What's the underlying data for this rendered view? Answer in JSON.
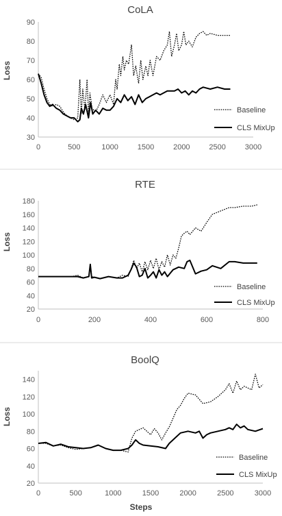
{
  "chart_data": [
    {
      "type": "line",
      "title": "CoLA",
      "xlabel": "",
      "ylabel": "Loss",
      "xlim": [
        0,
        3000
      ],
      "ylim": [
        30,
        90
      ],
      "xticks": [
        0,
        500,
        1000,
        1500,
        2000,
        2500,
        3000
      ],
      "yticks": [
        30,
        40,
        50,
        60,
        70,
        80,
        90
      ],
      "grid": false,
      "legend_position": "bottom-right",
      "series": [
        {
          "name": "Baseline",
          "style": "dotted",
          "x": [
            0,
            40,
            80,
            120,
            160,
            200,
            250,
            300,
            350,
            400,
            450,
            500,
            550,
            580,
            600,
            620,
            650,
            680,
            700,
            720,
            750,
            800,
            850,
            900,
            950,
            1000,
            1050,
            1080,
            1100,
            1130,
            1150,
            1180,
            1200,
            1230,
            1260,
            1300,
            1330,
            1360,
            1400,
            1430,
            1460,
            1500,
            1530,
            1560,
            1600,
            1650,
            1700,
            1750,
            1800,
            1830,
            1860,
            1900,
            1930,
            1960,
            2000,
            2030,
            2060,
            2100,
            2150,
            2200,
            2250,
            2300,
            2350,
            2400,
            2500,
            2600,
            2680
          ],
          "values": [
            63,
            61,
            55,
            50,
            47,
            46,
            47,
            46,
            43,
            41,
            40,
            39,
            40,
            60,
            42,
            55,
            44,
            60,
            42,
            53,
            45,
            43,
            47,
            52,
            48,
            52,
            47,
            60,
            55,
            68,
            62,
            72,
            65,
            70,
            68,
            78,
            62,
            67,
            58,
            70,
            60,
            67,
            62,
            70,
            62,
            72,
            70,
            75,
            78,
            85,
            72,
            78,
            84,
            75,
            78,
            85,
            78,
            80,
            77,
            82,
            84,
            85,
            83,
            84,
            83,
            83,
            83
          ]
        },
        {
          "name": "CLS MixUp",
          "style": "solid",
          "x": [
            0,
            40,
            80,
            120,
            160,
            200,
            250,
            300,
            350,
            400,
            450,
            500,
            550,
            580,
            600,
            630,
            660,
            700,
            730,
            760,
            800,
            850,
            900,
            950,
            1000,
            1050,
            1100,
            1150,
            1200,
            1250,
            1300,
            1350,
            1400,
            1450,
            1500,
            1550,
            1600,
            1650,
            1700,
            1800,
            1900,
            1950,
            2000,
            2050,
            2100,
            2150,
            2200,
            2250,
            2300,
            2400,
            2500,
            2600,
            2680
          ],
          "values": [
            63,
            58,
            52,
            48,
            46,
            47,
            45,
            44,
            42,
            41,
            40,
            40,
            38,
            39,
            45,
            42,
            47,
            40,
            48,
            42,
            44,
            42,
            45,
            44,
            44,
            46,
            50,
            48,
            52,
            49,
            51,
            47,
            52,
            48,
            50,
            51,
            52,
            53,
            52,
            54,
            54,
            55,
            53,
            54,
            52,
            54,
            53,
            55,
            56,
            55,
            56,
            55,
            55
          ]
        }
      ]
    },
    {
      "type": "line",
      "title": "RTE",
      "xlabel": "",
      "ylabel": "Loss",
      "xlim": [
        0,
        800
      ],
      "ylim": [
        20,
        180
      ],
      "xticks": [
        0,
        200,
        400,
        600,
        800
      ],
      "yticks": [
        20,
        40,
        60,
        80,
        100,
        120,
        140,
        160,
        180
      ],
      "grid": false,
      "legend_position": "bottom-right",
      "series": [
        {
          "name": "Baseline",
          "style": "dotted",
          "x": [
            0,
            40,
            80,
            120,
            140,
            160,
            180,
            185,
            190,
            200,
            220,
            250,
            280,
            300,
            320,
            330,
            340,
            350,
            360,
            370,
            380,
            390,
            400,
            410,
            420,
            430,
            440,
            450,
            460,
            470,
            480,
            490,
            500,
            510,
            520,
            530,
            540,
            560,
            580,
            600,
            620,
            650,
            680,
            700,
            730,
            760,
            780
          ],
          "values": [
            68,
            68,
            68,
            68,
            70,
            66,
            68,
            86,
            68,
            67,
            65,
            68,
            66,
            70,
            68,
            78,
            92,
            80,
            88,
            75,
            90,
            78,
            92,
            80,
            95,
            78,
            90,
            82,
            100,
            85,
            100,
            95,
            110,
            128,
            132,
            135,
            130,
            140,
            135,
            148,
            160,
            165,
            170,
            170,
            172,
            172,
            174
          ]
        },
        {
          "name": "CLS MixUp",
          "style": "solid",
          "x": [
            0,
            40,
            80,
            120,
            140,
            160,
            180,
            185,
            190,
            200,
            220,
            250,
            280,
            300,
            320,
            330,
            340,
            350,
            360,
            370,
            380,
            390,
            400,
            410,
            420,
            430,
            440,
            450,
            460,
            480,
            500,
            520,
            530,
            540,
            550,
            560,
            580,
            600,
            620,
            650,
            680,
            700,
            730,
            760,
            780
          ],
          "values": [
            68,
            68,
            68,
            68,
            68,
            66,
            68,
            86,
            66,
            67,
            65,
            68,
            66,
            66,
            70,
            78,
            88,
            82,
            68,
            70,
            80,
            66,
            70,
            75,
            66,
            78,
            70,
            75,
            68,
            78,
            82,
            80,
            90,
            92,
            82,
            72,
            76,
            78,
            84,
            80,
            90,
            90,
            88,
            88,
            88
          ]
        }
      ]
    },
    {
      "type": "line",
      "title": "BoolQ",
      "xlabel": "Steps",
      "ylabel": "Loss",
      "xlim": [
        0,
        3000
      ],
      "ylim": [
        20,
        150
      ],
      "xticks": [
        0,
        500,
        1000,
        1500,
        2000,
        2500,
        3000
      ],
      "yticks": [
        20,
        40,
        60,
        80,
        100,
        120,
        140
      ],
      "grid": false,
      "legend_position": "bottom-right",
      "series": [
        {
          "name": "Baseline",
          "style": "dotted",
          "x": [
            0,
            100,
            200,
            300,
            400,
            500,
            600,
            700,
            800,
            900,
            1000,
            1100,
            1200,
            1250,
            1300,
            1400,
            1450,
            1500,
            1550,
            1600,
            1650,
            1700,
            1750,
            1800,
            1850,
            1900,
            1950,
            2000,
            2100,
            2200,
            2300,
            2400,
            2500,
            2550,
            2600,
            2650,
            2700,
            2750,
            2800,
            2850,
            2900,
            2950,
            3000
          ],
          "values": [
            66,
            66,
            63,
            64,
            61,
            59,
            60,
            61,
            64,
            60,
            58,
            58,
            56,
            72,
            80,
            84,
            80,
            76,
            83,
            78,
            70,
            78,
            85,
            95,
            105,
            110,
            118,
            124,
            122,
            112,
            114,
            120,
            128,
            135,
            124,
            138,
            128,
            132,
            130,
            128,
            146,
            130,
            134
          ]
        },
        {
          "name": "CLS MixUp",
          "style": "solid",
          "x": [
            0,
            100,
            200,
            300,
            400,
            500,
            600,
            700,
            800,
            900,
            1000,
            1100,
            1200,
            1250,
            1300,
            1350,
            1400,
            1500,
            1600,
            1700,
            1750,
            1800,
            1900,
            2000,
            2100,
            2150,
            2200,
            2250,
            2300,
            2400,
            2500,
            2550,
            2600,
            2650,
            2700,
            2750,
            2800,
            2900,
            3000
          ],
          "values": [
            66,
            67,
            63,
            65,
            62,
            61,
            60,
            61,
            64,
            60,
            58,
            58,
            60,
            64,
            70,
            66,
            64,
            63,
            62,
            60,
            66,
            70,
            78,
            80,
            78,
            80,
            72,
            76,
            78,
            80,
            82,
            84,
            82,
            88,
            84,
            86,
            82,
            80,
            83
          ]
        }
      ]
    }
  ]
}
